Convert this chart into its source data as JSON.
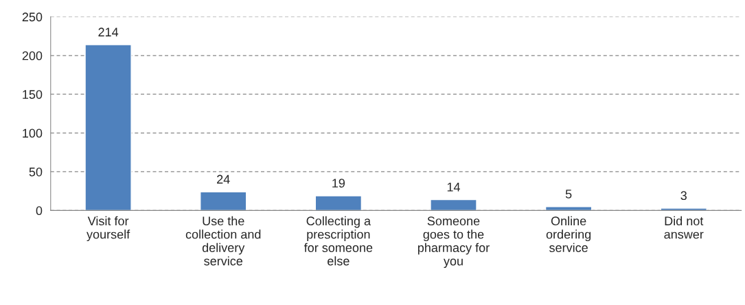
{
  "chart_data": {
    "type": "bar",
    "categories": [
      "Visit for\nyourself",
      "Use the\ncollection and\ndelivery\nservice",
      "Collecting a\nprescription\nfor someone\nelse",
      "Someone\ngoes to the\npharmacy for\nyou",
      "Online\nordering\nservice",
      "Did not\nanswer"
    ],
    "values": [
      214,
      24,
      19,
      14,
      5,
      3
    ],
    "color": "#4f81bd",
    "ylim": [
      0,
      250
    ],
    "yticks": [
      0,
      50,
      100,
      150,
      200,
      250
    ],
    "grid": "y",
    "data_labels": true
  }
}
